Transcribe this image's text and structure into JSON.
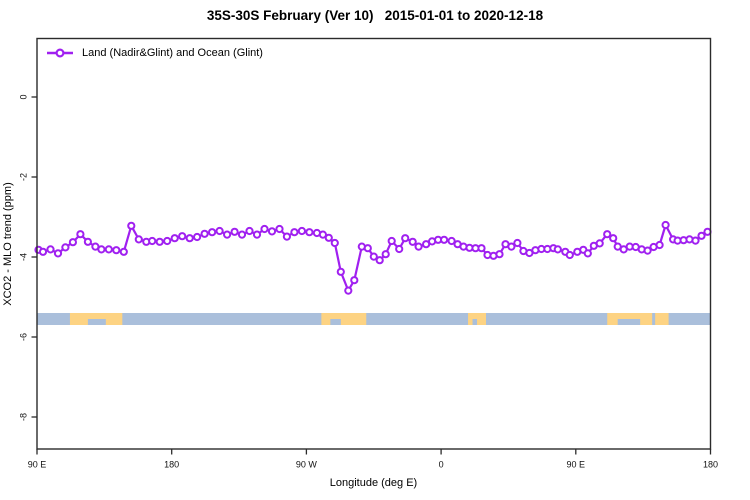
{
  "title": "35S-30S February (Ver 10)   2015-01-01 to 2020-12-18",
  "legend": {
    "label": "Land (Nadir&Glint) and Ocean (Glint)",
    "marker": "open-circle-on-line",
    "marker_color": "#A020F0"
  },
  "chart_data": {
    "type": "line",
    "title": "35S-30S February (Ver 10)   2015-01-01 to 2020-12-18",
    "xlabel": "Longitude (deg E)",
    "ylabel": "XCO2 - MLO trend (ppm)",
    "series_name": "Land (Nadir&Glint) and Ocean (Glint)",
    "line_color": "#A020F0",
    "marker_style": "open circle, white fill",
    "grid": "off",
    "x_range_deg_east": [
      90,
      540
    ],
    "ylim": [
      -8.8,
      1.5
    ],
    "x_ticks": [
      {
        "lon": 90,
        "label": "90 E"
      },
      {
        "lon": 180,
        "label": "180"
      },
      {
        "lon": 270,
        "label": "90 W"
      },
      {
        "lon": 360,
        "label": "0"
      },
      {
        "lon": 450,
        "label": "90 E"
      },
      {
        "lon": 540,
        "label": "180"
      }
    ],
    "y_ticks": [
      {
        "value": 0,
        "label": "0"
      },
      {
        "value": -2,
        "label": "-2"
      },
      {
        "value": -4,
        "label": "-4"
      },
      {
        "value": -6,
        "label": "-6"
      },
      {
        "value": -8,
        "label": "-8"
      }
    ],
    "points": [
      [
        91,
        -3.82
      ],
      [
        94,
        -3.87
      ],
      [
        99,
        -3.81
      ],
      [
        104,
        -3.91
      ],
      [
        109,
        -3.76
      ],
      [
        114,
        -3.63
      ],
      [
        119,
        -3.43
      ],
      [
        124,
        -3.62
      ],
      [
        129,
        -3.74
      ],
      [
        133,
        -3.81
      ],
      [
        138,
        -3.81
      ],
      [
        143,
        -3.83
      ],
      [
        148,
        -3.87
      ],
      [
        153,
        -3.22
      ],
      [
        158,
        -3.56
      ],
      [
        163,
        -3.62
      ],
      [
        167,
        -3.6
      ],
      [
        172,
        -3.62
      ],
      [
        177,
        -3.6
      ],
      [
        182,
        -3.53
      ],
      [
        187,
        -3.48
      ],
      [
        192,
        -3.53
      ],
      [
        197,
        -3.5
      ],
      [
        202,
        -3.42
      ],
      [
        207,
        -3.38
      ],
      [
        212,
        -3.35
      ],
      [
        217,
        -3.44
      ],
      [
        222,
        -3.37
      ],
      [
        227,
        -3.44
      ],
      [
        232,
        -3.35
      ],
      [
        237,
        -3.44
      ],
      [
        242,
        -3.3
      ],
      [
        247,
        -3.36
      ],
      [
        252,
        -3.3
      ],
      [
        257,
        -3.49
      ],
      [
        262,
        -3.38
      ],
      [
        267,
        -3.35
      ],
      [
        272,
        -3.38
      ],
      [
        277,
        -3.4
      ],
      [
        281,
        -3.44
      ],
      [
        285,
        -3.52
      ],
      [
        289,
        -3.65
      ],
      [
        293,
        -4.37
      ],
      [
        298,
        -4.84
      ],
      [
        302,
        -4.58
      ],
      [
        307,
        -3.74
      ],
      [
        311,
        -3.78
      ],
      [
        315,
        -3.99
      ],
      [
        319,
        -4.08
      ],
      [
        323,
        -3.93
      ],
      [
        327,
        -3.6
      ],
      [
        332,
        -3.8
      ],
      [
        336,
        -3.53
      ],
      [
        341,
        -3.62
      ],
      [
        345,
        -3.74
      ],
      [
        350,
        -3.68
      ],
      [
        354,
        -3.61
      ],
      [
        358,
        -3.57
      ],
      [
        362,
        -3.57
      ],
      [
        367,
        -3.6
      ],
      [
        371,
        -3.68
      ],
      [
        375,
        -3.74
      ],
      [
        379,
        -3.77
      ],
      [
        383,
        -3.78
      ],
      [
        387,
        -3.78
      ],
      [
        391,
        -3.95
      ],
      [
        395,
        -3.97
      ],
      [
        399,
        -3.93
      ],
      [
        403,
        -3.68
      ],
      [
        407,
        -3.74
      ],
      [
        411,
        -3.65
      ],
      [
        415,
        -3.85
      ],
      [
        419,
        -3.9
      ],
      [
        423,
        -3.83
      ],
      [
        427,
        -3.8
      ],
      [
        431,
        -3.8
      ],
      [
        435,
        -3.78
      ],
      [
        438,
        -3.81
      ],
      [
        443,
        -3.87
      ],
      [
        446,
        -3.95
      ],
      [
        451,
        -3.87
      ],
      [
        455,
        -3.82
      ],
      [
        458,
        -3.91
      ],
      [
        462,
        -3.72
      ],
      [
        466,
        -3.66
      ],
      [
        471,
        -3.43
      ],
      [
        475,
        -3.53
      ],
      [
        478,
        -3.74
      ],
      [
        482,
        -3.81
      ],
      [
        486,
        -3.74
      ],
      [
        490,
        -3.75
      ],
      [
        494,
        -3.81
      ],
      [
        498,
        -3.84
      ],
      [
        502,
        -3.75
      ],
      [
        506,
        -3.7
      ],
      [
        510,
        -3.2
      ],
      [
        515,
        -3.56
      ],
      [
        518,
        -3.59
      ],
      [
        522,
        -3.58
      ],
      [
        526,
        -3.56
      ],
      [
        530,
        -3.59
      ],
      [
        534,
        -3.47
      ],
      [
        538,
        -3.37
      ]
    ],
    "land_ocean_band": {
      "description": "strip showing surface type along 35S-30S: ocean (blue) vs land (orange)",
      "y_top": -5.4,
      "y_bottom": -5.7,
      "ocean_color": "#aabfdb",
      "land_color": "#fdd383",
      "land_patches_deg_east": [
        [
          112,
          147
        ],
        [
          280,
          310
        ],
        [
          378,
          390
        ],
        [
          471,
          501
        ],
        [
          503,
          512
        ]
      ],
      "coast_notches_deg_east": [
        [
          124,
          136
        ],
        [
          286,
          293
        ],
        [
          381,
          384
        ],
        [
          478,
          493
        ]
      ]
    }
  }
}
